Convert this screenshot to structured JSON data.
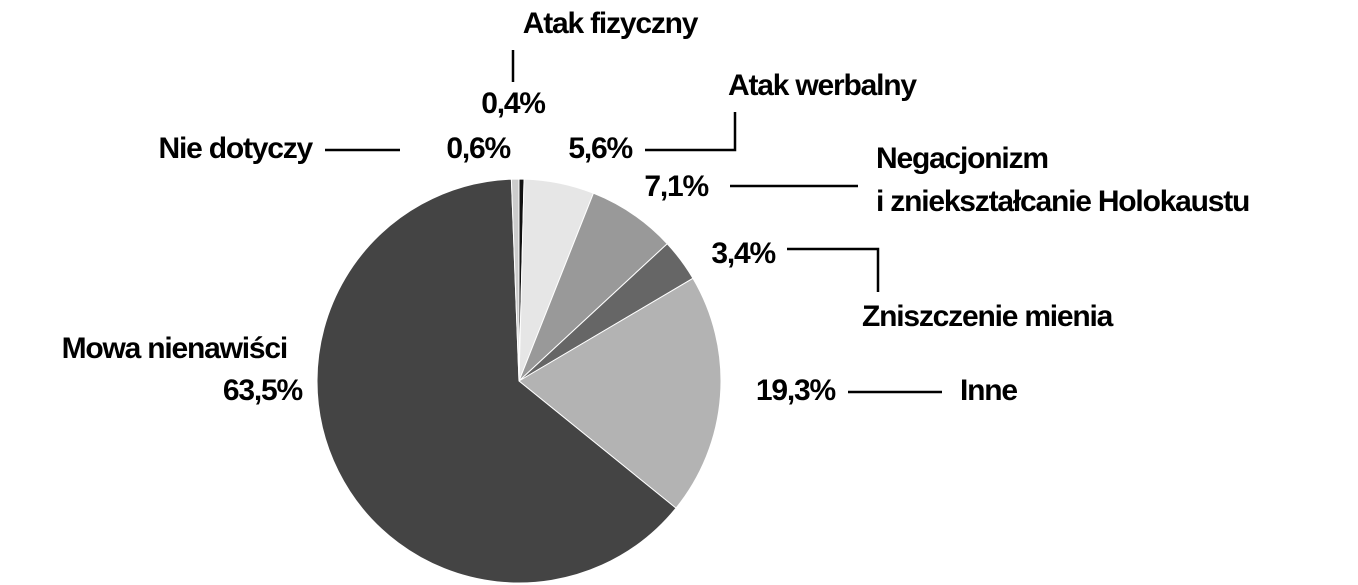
{
  "chart_data": {
    "type": "pie",
    "categories": [
      "Atak fizyczny",
      "Atak werbalny",
      "Negacjonizm\ni zniekształcanie Holokaustu",
      "Zniszczenie mienia",
      "Inne",
      "Mowa nienawiści",
      "Nie dotyczy"
    ],
    "values": [
      0.4,
      5.6,
      7.1,
      3.4,
      19.3,
      63.5,
      0.6
    ],
    "value_labels": [
      "0,4%",
      "5,6%",
      "7,1%",
      "3,4%",
      "19,3%",
      "63,5%",
      "0,6%"
    ],
    "colors": [
      "#111111",
      "#e6e6e6",
      "#999999",
      "#666666",
      "#b3b3b3",
      "#444444",
      "#cccccc"
    ]
  }
}
